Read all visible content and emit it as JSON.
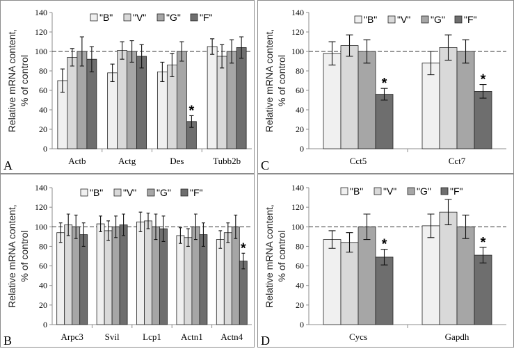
{
  "colors": {
    "B": "#f0f0f0",
    "V": "#d9d9d9",
    "G": "#a6a6a6",
    "F": "#6e6e6e"
  },
  "chart_data": [
    {
      "panel": "A",
      "type": "bar",
      "ylabel_line1": "Relative mRNA content,",
      "ylabel_line2": "% of control",
      "ylim": [
        0,
        140
      ],
      "yticks": [
        0,
        20,
        40,
        60,
        80,
        100,
        120,
        140
      ],
      "reference_value": 100,
      "legend": [
        "\"B\"",
        "\"V\"",
        "\"G\"",
        "\"F\""
      ],
      "legend_placement": "top",
      "categories": [
        "Actb",
        "Actg",
        "Des",
        "Tubb2b"
      ],
      "series": [
        {
          "name": "\"B\"",
          "key": "B",
          "values": [
            70,
            78,
            79,
            105
          ],
          "errors": [
            12,
            9,
            10,
            8
          ]
        },
        {
          "name": "\"V\"",
          "key": "V",
          "values": [
            94,
            101,
            86,
            95
          ],
          "errors": [
            9,
            9,
            12,
            12
          ]
        },
        {
          "name": "\"G\"",
          "key": "G",
          "values": [
            100,
            100,
            100,
            100
          ],
          "errors": [
            15,
            11,
            10,
            12
          ]
        },
        {
          "name": "\"F\"",
          "key": "F",
          "values": [
            92,
            95,
            28,
            104
          ],
          "errors": [
            13,
            12,
            6,
            11
          ]
        }
      ],
      "significance": [
        {
          "category": "Des",
          "series": "F",
          "mark": "*"
        }
      ]
    },
    {
      "panel": "C",
      "type": "bar",
      "ylabel_line1": "Relative mRNA content,",
      "ylabel_line2": "% of control",
      "ylim": [
        0,
        140
      ],
      "yticks": [
        0,
        20,
        40,
        60,
        80,
        100,
        120,
        140
      ],
      "reference_value": 100,
      "legend": [
        "\"B\"",
        "\"V\"",
        "\"G\"",
        "\"F\""
      ],
      "legend_placement": "top",
      "categories": [
        "Cct5",
        "Cct7"
      ],
      "series": [
        {
          "name": "\"B\"",
          "key": "B",
          "values": [
            98,
            88
          ],
          "errors": [
            12,
            12
          ]
        },
        {
          "name": "\"V\"",
          "key": "V",
          "values": [
            106,
            104
          ],
          "errors": [
            11,
            13
          ]
        },
        {
          "name": "\"G\"",
          "key": "G",
          "values": [
            100,
            100
          ],
          "errors": [
            12,
            12
          ]
        },
        {
          "name": "\"F\"",
          "key": "F",
          "values": [
            56,
            59
          ],
          "errors": [
            6,
            7
          ]
        }
      ],
      "significance": [
        {
          "category": "Cct5",
          "series": "F",
          "mark": "*"
        },
        {
          "category": "Cct7",
          "series": "F",
          "mark": "*"
        }
      ]
    },
    {
      "panel": "B",
      "type": "bar",
      "ylabel_line1": "Relative mRNA content,",
      "ylabel_line2": "% of control",
      "ylim": [
        0,
        140
      ],
      "yticks": [
        0,
        20,
        40,
        60,
        80,
        100,
        120,
        140
      ],
      "reference_value": 100,
      "legend": [
        "\"B\"",
        "\"V\"",
        "\"G\"",
        "\"F\""
      ],
      "legend_placement": "top",
      "categories": [
        "Arpc3",
        "Svil",
        "Lcp1",
        "Actn1",
        "Actn4"
      ],
      "series": [
        {
          "name": "\"B\"",
          "key": "B",
          "values": [
            94,
            103,
            105,
            91,
            87
          ],
          "errors": [
            10,
            8,
            10,
            8,
            9
          ]
        },
        {
          "name": "\"V\"",
          "key": "V",
          "values": [
            102,
            96,
            106,
            89,
            94
          ],
          "errors": [
            11,
            10,
            8,
            9,
            10
          ]
        },
        {
          "name": "\"G\"",
          "key": "G",
          "values": [
            100,
            100,
            100,
            100,
            100
          ],
          "errors": [
            12,
            11,
            13,
            13,
            12
          ]
        },
        {
          "name": "\"F\"",
          "key": "F",
          "values": [
            92,
            102,
            98,
            92,
            65
          ],
          "errors": [
            12,
            11,
            13,
            12,
            8
          ]
        }
      ],
      "significance": [
        {
          "category": "Actn4",
          "series": "F",
          "mark": "*"
        }
      ]
    },
    {
      "panel": "D",
      "type": "bar",
      "ylabel_line1": "Relative mRNA content,",
      "ylabel_line2": "% of control",
      "ylim": [
        0,
        140
      ],
      "yticks": [
        0,
        20,
        40,
        60,
        80,
        100,
        120,
        140
      ],
      "reference_value": 100,
      "legend": [
        "\"B\"",
        "\"V\"",
        "\"G\"",
        "\"F\""
      ],
      "legend_placement": "top",
      "categories": [
        "Cycs",
        "Gapdh"
      ],
      "series": [
        {
          "name": "\"B\"",
          "key": "B",
          "values": [
            87,
            101
          ],
          "errors": [
            9,
            12
          ]
        },
        {
          "name": "\"V\"",
          "key": "V",
          "values": [
            84,
            115
          ],
          "errors": [
            10,
            13
          ]
        },
        {
          "name": "\"G\"",
          "key": "G",
          "values": [
            100,
            100
          ],
          "errors": [
            13,
            12
          ]
        },
        {
          "name": "\"F\"",
          "key": "F",
          "values": [
            69,
            71
          ],
          "errors": [
            8,
            8
          ]
        }
      ],
      "significance": [
        {
          "category": "Cycs",
          "series": "F",
          "mark": "*"
        },
        {
          "category": "Gapdh",
          "series": "F",
          "mark": "*"
        }
      ]
    }
  ]
}
